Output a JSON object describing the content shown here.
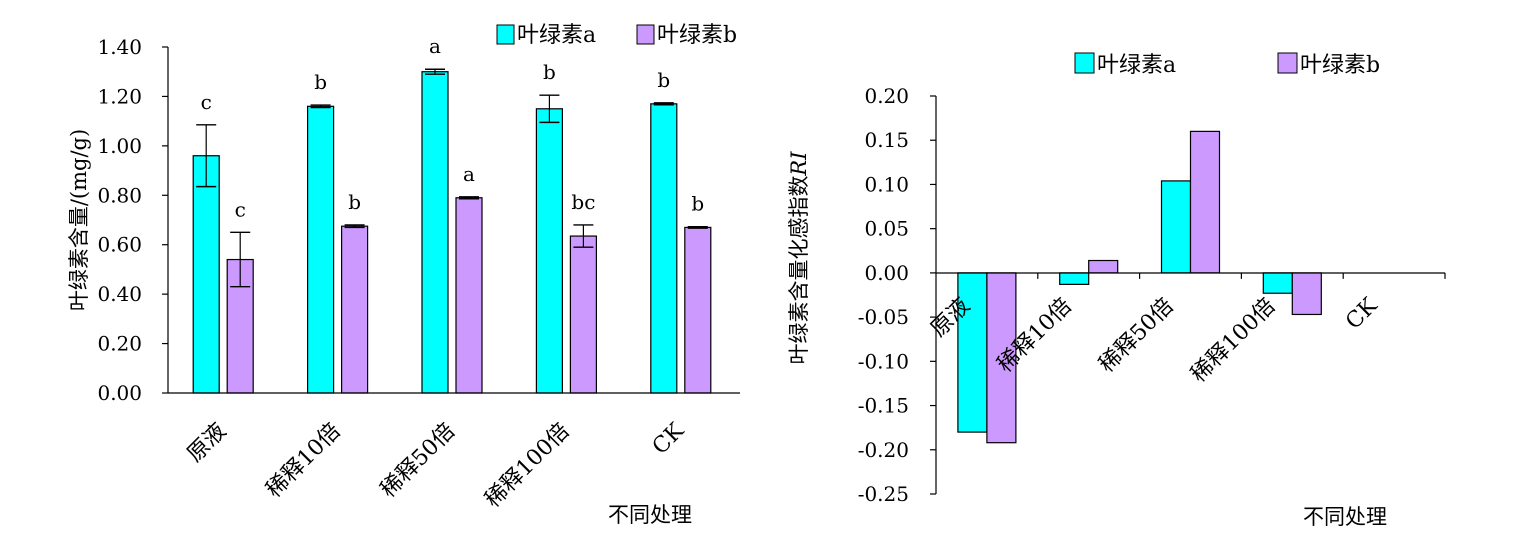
{
  "chart_data": [
    {
      "type": "bar",
      "categories": [
        "原液",
        "稀释10倍",
        "稀释50倍",
        "稀释100倍",
        "CK"
      ],
      "series": [
        {
          "name": "叶绿素a",
          "color": "#00ffff",
          "values": [
            0.96,
            1.16,
            1.3,
            1.15,
            1.17
          ],
          "errors": [
            0.125,
            0.005,
            0.01,
            0.055,
            0.004
          ],
          "labels": [
            "c",
            "b",
            "a",
            "b",
            "b"
          ]
        },
        {
          "name": "叶绿素b",
          "color": "#cc99ff",
          "values": [
            0.54,
            0.675,
            0.79,
            0.635,
            0.67
          ],
          "errors": [
            0.11,
            0.005,
            0.004,
            0.045,
            0.003
          ],
          "labels": [
            "c",
            "b",
            "a",
            "bc",
            "b"
          ]
        }
      ],
      "ylabel": "叶绿素含量/(mg/g)",
      "xlabel": "不同处理",
      "ylim": [
        0,
        1.4
      ],
      "yticks": [
        "0.00",
        "0.20",
        "0.40",
        "0.60",
        "0.80",
        "1.00",
        "1.20",
        "1.40"
      ],
      "legend_position": "top",
      "grid": false
    },
    {
      "type": "bar",
      "categories": [
        "原液",
        "稀释10倍",
        "稀释50倍",
        "稀释100倍",
        "CK"
      ],
      "series": [
        {
          "name": "叶绿素a",
          "color": "#00ffff",
          "values": [
            -0.18,
            -0.013,
            0.104,
            -0.023,
            0
          ]
        },
        {
          "name": "叶绿素b",
          "color": "#cc99ff",
          "values": [
            -0.192,
            0.014,
            0.16,
            -0.047,
            0
          ]
        }
      ],
      "ylabel_main": "叶绿素含量化感指数",
      "ylabel_ri": "RI",
      "xlabel": "不同处理",
      "ylim": [
        -0.25,
        0.2
      ],
      "yticks": [
        "-0.25",
        "-0.20",
        "-0.15",
        "-0.10",
        "-0.05",
        "0.00",
        "0.05",
        "0.10",
        "0.15",
        "0.20"
      ],
      "legend_position": "top",
      "grid": false
    }
  ]
}
